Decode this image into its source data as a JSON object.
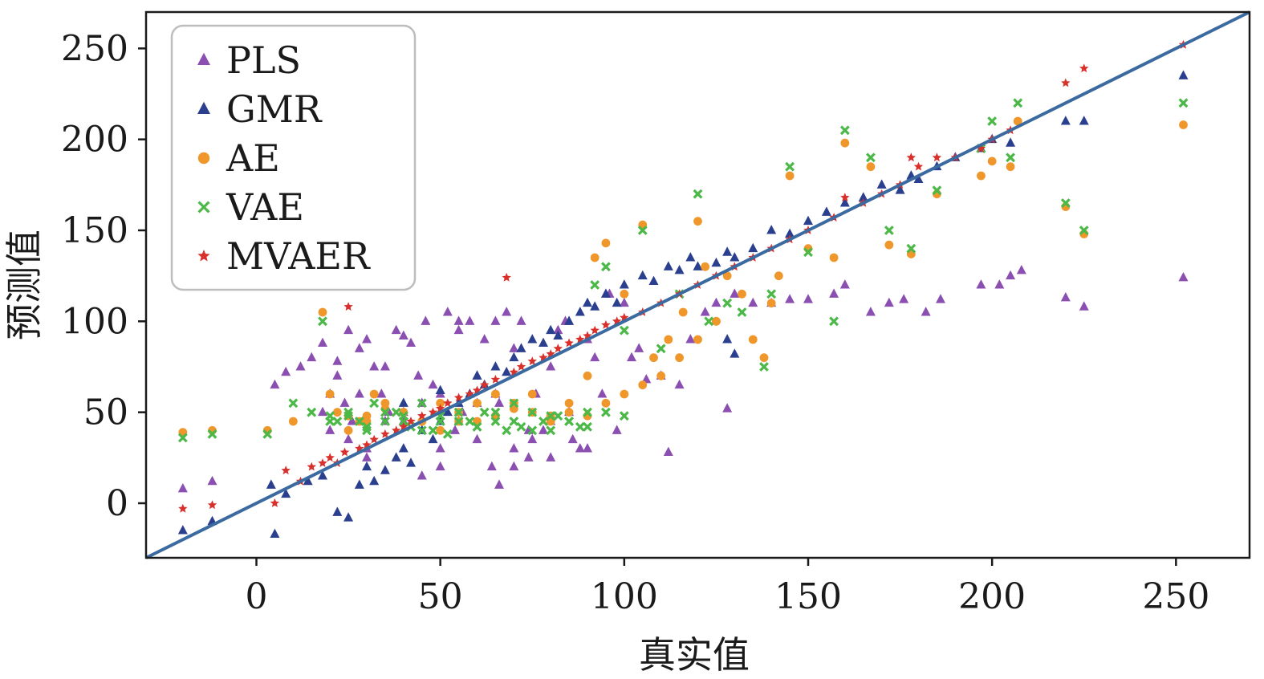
{
  "chart_data": {
    "type": "scatter",
    "title": "",
    "xlabel": "真实值",
    "ylabel": "预测值",
    "xlim": [
      -30,
      270
    ],
    "ylim": [
      -30,
      270
    ],
    "xticks": [
      "0",
      "50",
      "100",
      "150",
      "200",
      "250"
    ],
    "yticks": [
      "0",
      "50",
      "100",
      "150",
      "200",
      "250"
    ],
    "xtick_values": [
      0,
      50,
      100,
      150,
      200,
      250
    ],
    "ytick_values": [
      0,
      50,
      100,
      150,
      200,
      250
    ],
    "grid": false,
    "legend_position": "top-left",
    "reference_line": {
      "from": [
        -30,
        -30
      ],
      "to": [
        270,
        270
      ],
      "color": "#3b6aa0"
    },
    "series": [
      {
        "name": "PLS",
        "marker": "triangle",
        "color": "#8a4fb0",
        "x": [
          -20,
          -12,
          5,
          8,
          12,
          15,
          18,
          20,
          22,
          24,
          25,
          26,
          28,
          30,
          32,
          34,
          36,
          38,
          40,
          42,
          44,
          46,
          48,
          50,
          52,
          54,
          55,
          56,
          58,
          60,
          62,
          64,
          66,
          68,
          70,
          72,
          74,
          76,
          78,
          80,
          82,
          84,
          86,
          88,
          90,
          92,
          94,
          96,
          98,
          100,
          102,
          104,
          106,
          110,
          112,
          115,
          118,
          122,
          125,
          128,
          130,
          135,
          140,
          145,
          150,
          157,
          160,
          167,
          172,
          176,
          182,
          186,
          197,
          202,
          205,
          208,
          220,
          225,
          252,
          20,
          25,
          30,
          35,
          40,
          45,
          50,
          55,
          60,
          65,
          70,
          75,
          80,
          85,
          60,
          50,
          40,
          30,
          22,
          18,
          70,
          80,
          90,
          65,
          55,
          45,
          35,
          28,
          66,
          74
        ],
        "y": [
          8,
          12,
          65,
          72,
          75,
          80,
          88,
          60,
          70,
          55,
          95,
          45,
          85,
          90,
          75,
          60,
          50,
          95,
          92,
          88,
          70,
          100,
          65,
          30,
          105,
          40,
          95,
          50,
          100,
          35,
          90,
          20,
          55,
          105,
          85,
          100,
          25,
          60,
          40,
          75,
          95,
          100,
          35,
          30,
          90,
          80,
          60,
          115,
          40,
          110,
          80,
          85,
          68,
          70,
          28,
          65,
          90,
          105,
          110,
          52,
          115,
          110,
          110,
          112,
          112,
          115,
          120,
          105,
          110,
          112,
          105,
          112,
          120,
          120,
          125,
          128,
          113,
          108,
          124,
          40,
          35,
          25,
          45,
          50,
          15,
          20,
          45,
          55,
          60,
          30,
          35,
          45,
          50,
          70,
          60,
          45,
          30,
          78,
          50,
          20,
          25,
          30,
          100,
          100,
          55,
          75,
          60,
          10,
          40
        ]
      },
      {
        "name": "GMR",
        "marker": "triangle",
        "color": "#2b3f8f",
        "x": [
          -20,
          -12,
          4,
          5,
          8,
          14,
          18,
          22,
          25,
          28,
          30,
          32,
          35,
          38,
          40,
          42,
          45,
          48,
          50,
          52,
          55,
          58,
          60,
          62,
          65,
          68,
          70,
          72,
          75,
          78,
          80,
          82,
          85,
          88,
          90,
          92,
          95,
          98,
          100,
          105,
          108,
          112,
          115,
          118,
          120,
          125,
          128,
          130,
          135,
          140,
          145,
          150,
          155,
          160,
          165,
          170,
          175,
          178,
          180,
          185,
          190,
          197,
          200,
          205,
          220,
          225,
          252,
          130,
          128,
          50,
          40
        ],
        "y": [
          -15,
          -10,
          10,
          -17,
          5,
          12,
          15,
          -5,
          -8,
          10,
          20,
          12,
          18,
          25,
          30,
          22,
          40,
          35,
          45,
          50,
          55,
          60,
          70,
          65,
          75,
          72,
          80,
          85,
          90,
          88,
          95,
          92,
          100,
          105,
          110,
          108,
          115,
          110,
          120,
          125,
          122,
          130,
          128,
          135,
          130,
          132,
          138,
          135,
          140,
          150,
          148,
          155,
          160,
          165,
          168,
          175,
          172,
          180,
          178,
          185,
          190,
          195,
          200,
          198,
          210,
          210,
          235,
          82,
          90,
          62,
          55
        ]
      },
      {
        "name": "AE",
        "marker": "circle",
        "color": "#f0972c",
        "x": [
          -20,
          -12,
          3,
          10,
          18,
          22,
          25,
          28,
          30,
          32,
          35,
          40,
          45,
          50,
          55,
          60,
          65,
          70,
          75,
          80,
          85,
          90,
          92,
          95,
          100,
          105,
          108,
          112,
          116,
          120,
          122,
          125,
          128,
          132,
          135,
          138,
          140,
          142,
          145,
          150,
          157,
          160,
          167,
          172,
          178,
          185,
          197,
          200,
          205,
          207,
          220,
          225,
          252,
          20,
          25,
          30,
          35,
          40,
          45,
          50,
          55,
          60,
          65,
          70,
          75,
          80,
          85,
          90,
          95,
          100,
          105,
          110,
          115,
          120,
          125
        ],
        "y": [
          39,
          40,
          40,
          45,
          105,
          50,
          48,
          45,
          48,
          60,
          52,
          50,
          45,
          55,
          50,
          45,
          60,
          55,
          50,
          48,
          55,
          70,
          135,
          143,
          115,
          153,
          80,
          90,
          105,
          155,
          130,
          100,
          125,
          115,
          90,
          80,
          110,
          125,
          180,
          140,
          135,
          198,
          185,
          142,
          137,
          170,
          180,
          188,
          185,
          210,
          163,
          148,
          208,
          60,
          40,
          45,
          55,
          50,
          45,
          40,
          45,
          55,
          48,
          52,
          60,
          45,
          50,
          48,
          55,
          60,
          65,
          70,
          80,
          90,
          100
        ]
      },
      {
        "name": "VAE",
        "marker": "x",
        "color": "#4cb848",
        "x": [
          -20,
          -12,
          3,
          10,
          15,
          18,
          20,
          22,
          25,
          28,
          30,
          32,
          35,
          38,
          40,
          42,
          45,
          48,
          50,
          52,
          55,
          58,
          60,
          62,
          65,
          68,
          70,
          72,
          75,
          78,
          80,
          82,
          85,
          88,
          90,
          92,
          95,
          100,
          105,
          110,
          115,
          120,
          123,
          128,
          132,
          138,
          140,
          145,
          150,
          157,
          160,
          167,
          172,
          178,
          185,
          197,
          200,
          205,
          207,
          220,
          225,
          252,
          20,
          25,
          30,
          35,
          40,
          45,
          50,
          55,
          60,
          65,
          70,
          75,
          80,
          85,
          90,
          95,
          100
        ],
        "y": [
          36,
          38,
          38,
          55,
          50,
          100,
          48,
          45,
          50,
          45,
          40,
          55,
          45,
          50,
          48,
          42,
          55,
          40,
          45,
          38,
          50,
          45,
          42,
          50,
          45,
          40,
          55,
          42,
          50,
          45,
          40,
          48,
          45,
          42,
          50,
          120,
          130,
          95,
          150,
          85,
          115,
          170,
          100,
          110,
          105,
          75,
          115,
          185,
          138,
          100,
          205,
          190,
          150,
          140,
          172,
          195,
          210,
          190,
          220,
          165,
          150,
          220,
          45,
          48,
          42,
          50,
          45,
          40,
          48,
          45,
          42,
          50,
          45,
          40,
          48,
          45,
          42,
          50,
          48
        ]
      },
      {
        "name": "MVAER",
        "marker": "star",
        "color": "#d9302c",
        "x": [
          -20,
          -12,
          5,
          8,
          12,
          15,
          18,
          20,
          22,
          24,
          25,
          28,
          30,
          32,
          35,
          38,
          40,
          42,
          45,
          48,
          50,
          52,
          55,
          58,
          60,
          62,
          65,
          68,
          70,
          72,
          75,
          78,
          80,
          82,
          85,
          88,
          90,
          92,
          95,
          98,
          100,
          105,
          110,
          115,
          120,
          125,
          130,
          135,
          140,
          145,
          150,
          157,
          160,
          165,
          170,
          175,
          178,
          180,
          185,
          190,
          197,
          200,
          205,
          220,
          225,
          252
        ],
        "y": [
          -3,
          -1,
          0,
          18,
          12,
          20,
          22,
          25,
          22,
          28,
          108,
          30,
          32,
          35,
          38,
          40,
          42,
          45,
          48,
          50,
          52,
          55,
          58,
          60,
          62,
          65,
          68,
          124,
          72,
          75,
          78,
          80,
          82,
          85,
          88,
          90,
          92,
          95,
          98,
          100,
          102,
          105,
          110,
          115,
          120,
          125,
          130,
          135,
          140,
          145,
          150,
          157,
          168,
          165,
          170,
          175,
          190,
          185,
          190,
          190,
          195,
          200,
          205,
          231,
          239,
          252
        ]
      }
    ]
  }
}
